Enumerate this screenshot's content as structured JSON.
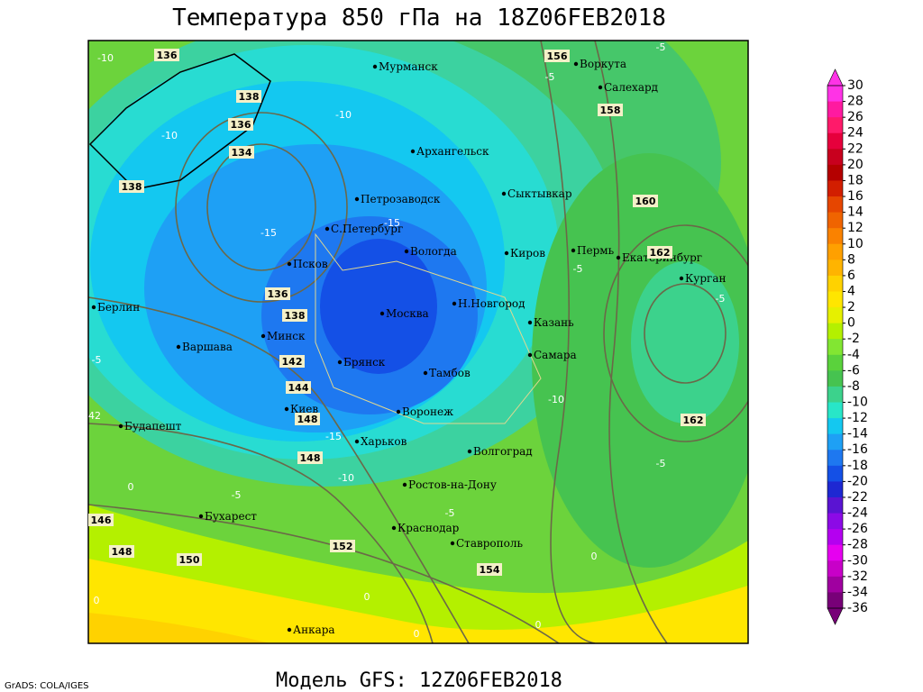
{
  "header": {
    "title": "Температура 850 гПа на 18Z06FEB2018"
  },
  "footer": {
    "model": "Модель GFS: 12Z06FEB2018",
    "credit": "GrADS: COLA/IGES"
  },
  "cities": [
    "Мурманск",
    "Воркута",
    "Салехард",
    "Архангельск",
    "Сыктывкар",
    "Петрозаводск",
    "С.Петербург",
    "Вологда",
    "Киров",
    "Пермь",
    "Екатеринбург",
    "Курган",
    "Псков",
    "Н.Новгород",
    "Москва",
    "Казань",
    "Берлин",
    "Минск",
    "Варшава",
    "Самара",
    "Брянск",
    "Тамбов",
    "Киев",
    "Воронеж",
    "Будапешт",
    "Харьков",
    "Волгоград",
    "Ростов-на-Дону",
    "Бухарест",
    "Краснодар",
    "Ставрополь",
    "Анкара"
  ],
  "height_labels": [
    136,
    156,
    138,
    158,
    136,
    134,
    138,
    160,
    162,
    136,
    138,
    142,
    144,
    148,
    148,
    162,
    146,
    148,
    150,
    152,
    154
  ],
  "temperature_labels": [
    -10,
    -5,
    -5,
    -10,
    -10,
    -15,
    -15,
    -5,
    -5,
    -5,
    -10,
    -15,
    -10,
    -5,
    -5,
    -5,
    0,
    0,
    0,
    0,
    0,
    42,
    0
  ],
  "colorbar": {
    "levels": [
      30,
      28,
      26,
      24,
      22,
      20,
      18,
      16,
      14,
      12,
      10,
      8,
      6,
      4,
      2,
      0,
      -2,
      -4,
      -6,
      -8,
      -10,
      -12,
      -14,
      -16,
      -18,
      -20,
      -22,
      -24,
      -26,
      -28,
      -30,
      -32,
      -34,
      -36
    ],
    "colors": [
      "#ff33e6",
      "#ff1aa0",
      "#ff1a6a",
      "#e6003c",
      "#c8001e",
      "#b40000",
      "#d21e00",
      "#e64600",
      "#f06400",
      "#fa8200",
      "#ffa000",
      "#ffb400",
      "#ffd200",
      "#ffe600",
      "#e6f000",
      "#b4f000",
      "#82e632",
      "#5ad23c",
      "#46c350",
      "#3cd28c",
      "#28e6c8",
      "#14c8f0",
      "#1ea0f5",
      "#1e78f0",
      "#1450e6",
      "#1e28d2",
      "#5a14d2",
      "#8c0ae6",
      "#b400f0",
      "#e600f0",
      "#c800c8",
      "#a000a0",
      "#780078"
    ]
  }
}
